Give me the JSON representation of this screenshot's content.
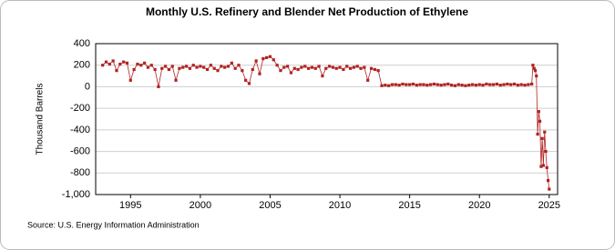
{
  "chart_data": {
    "type": "line",
    "title": "Monthly U.S. Refinery and Blender Net Production of Ethylene",
    "y_label": "Thousand Barrels",
    "source": "Source: U.S. Energy Information Administration",
    "x": [
      1993,
      1993.25,
      1993.5,
      1993.75,
      1994,
      1994.25,
      1994.5,
      1994.75,
      1995,
      1995.25,
      1995.5,
      1995.75,
      1996,
      1996.25,
      1996.5,
      1996.75,
      1997,
      1997.25,
      1997.5,
      1997.75,
      1998,
      1998.25,
      1998.5,
      1998.75,
      1999,
      1999.25,
      1999.5,
      1999.75,
      2000,
      2000.25,
      2000.5,
      2000.75,
      2001,
      2001.25,
      2001.5,
      2001.75,
      2002,
      2002.25,
      2002.5,
      2002.75,
      2003,
      2003.25,
      2003.5,
      2003.75,
      2004,
      2004.25,
      2004.5,
      2004.75,
      2005,
      2005.25,
      2005.5,
      2005.75,
      2006,
      2006.25,
      2006.5,
      2006.75,
      2007,
      2007.25,
      2007.5,
      2007.75,
      2008,
      2008.25,
      2008.5,
      2008.75,
      2009,
      2009.25,
      2009.5,
      2009.75,
      2010,
      2010.25,
      2010.5,
      2010.75,
      2011,
      2011.25,
      2011.5,
      2011.75,
      2012,
      2012.25,
      2012.5,
      2012.75,
      2013,
      2013.25,
      2013.5,
      2013.75,
      2014,
      2014.25,
      2014.5,
      2014.75,
      2015,
      2015.25,
      2015.5,
      2015.75,
      2016,
      2016.25,
      2016.5,
      2016.75,
      2017,
      2017.25,
      2017.5,
      2017.75,
      2018,
      2018.25,
      2018.5,
      2018.75,
      2019,
      2019.25,
      2019.5,
      2019.75,
      2020,
      2020.25,
      2020.5,
      2020.75,
      2021,
      2021.25,
      2021.5,
      2021.75,
      2022,
      2022.25,
      2022.5,
      2022.75,
      2023,
      2023.25,
      2023.5,
      2023.75,
      2023.83,
      2023.92,
      2024,
      2024.08,
      2024.17,
      2024.25,
      2024.33,
      2024.42,
      2024.5,
      2024.58,
      2024.67,
      2024.75,
      2024.83,
      2024.92,
      2025
    ],
    "series": [
      {
        "name": "Ethylene",
        "color": "#b22222",
        "values": [
          200,
          230,
          210,
          240,
          150,
          210,
          230,
          220,
          60,
          160,
          210,
          200,
          220,
          180,
          200,
          160,
          0,
          170,
          190,
          160,
          190,
          60,
          170,
          180,
          190,
          170,
          200,
          180,
          190,
          180,
          160,
          200,
          170,
          150,
          190,
          180,
          190,
          220,
          170,
          200,
          150,
          60,
          30,
          160,
          240,
          120,
          260,
          270,
          280,
          250,
          200,
          150,
          180,
          190,
          130,
          170,
          160,
          180,
          190,
          170,
          180,
          170,
          190,
          100,
          170,
          190,
          180,
          170,
          180,
          160,
          190,
          170,
          180,
          190,
          170,
          180,
          60,
          170,
          160,
          150,
          10,
          15,
          10,
          20,
          20,
          15,
          25,
          20,
          20,
          25,
          15,
          20,
          20,
          15,
          20,
          25,
          20,
          15,
          20,
          25,
          15,
          10,
          20,
          15,
          10,
          15,
          20,
          15,
          20,
          15,
          25,
          20,
          20,
          25,
          15,
          20,
          25,
          20,
          25,
          15,
          20,
          15,
          20,
          25,
          200,
          170,
          150,
          100,
          -440,
          -230,
          -320,
          -740,
          -480,
          -730,
          -420,
          -600,
          -750,
          -870,
          -950
        ]
      }
    ],
    "xlim": [
      1992.5,
      2025.6
    ],
    "xticks": [
      1995,
      2000,
      2005,
      2010,
      2015,
      2020,
      2025
    ],
    "ylim": [
      -1000,
      400
    ],
    "yticks": [
      {
        "value": -1000,
        "label": "-1,000"
      },
      -800,
      -600,
      -400,
      -200,
      0,
      200,
      400
    ],
    "grid": true
  }
}
